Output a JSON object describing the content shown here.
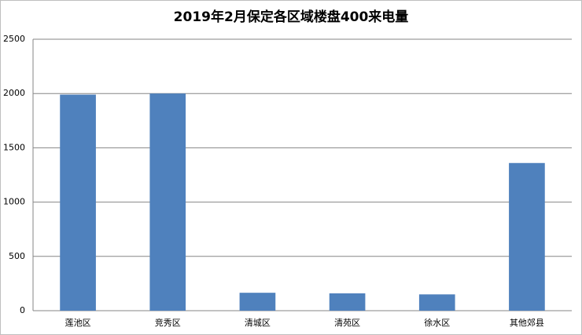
{
  "chart_data": {
    "type": "bar",
    "title": "2019年2月保定各区域楼盘400来电量",
    "categories": [
      "莲池区",
      "竞秀区",
      "清城区",
      "清苑区",
      "徐水区",
      "其他郊县"
    ],
    "values": [
      1990,
      2000,
      165,
      160,
      150,
      1360
    ],
    "color": "#4f81bd",
    "ylim": [
      0,
      2500
    ],
    "yticks": [
      0,
      500,
      1000,
      1500,
      2000,
      2500
    ],
    "grid": true
  }
}
